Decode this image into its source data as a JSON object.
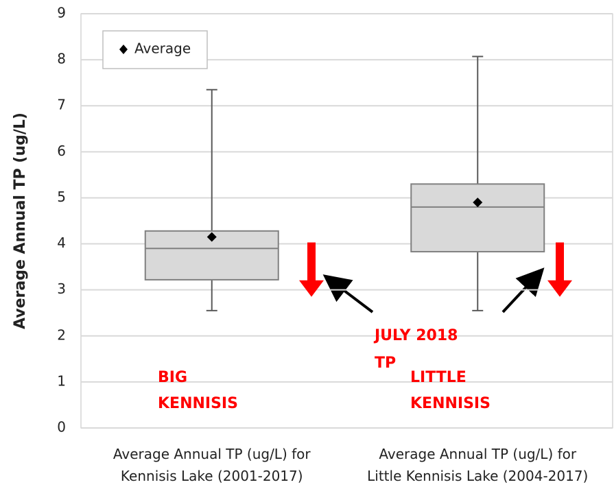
{
  "chart_data": {
    "type": "box",
    "y_label": "Average Annual TP (ug/L)",
    "categories": [
      [
        "Average Annual TP (ug/L) for",
        "Kennisis Lake (2001-2017)"
      ],
      [
        "Average Annual TP (ug/L) for",
        "Little Kennisis Lake (2004-2017)"
      ]
    ],
    "boxes": [
      {
        "min": 2.55,
        "q1": 3.22,
        "median": 3.9,
        "q3": 4.28,
        "max": 7.35,
        "mean": 4.15
      },
      {
        "min": 2.55,
        "q1": 3.83,
        "median": 4.8,
        "q3": 5.3,
        "max": 8.07,
        "mean": 4.9
      }
    ],
    "july_2018_tp": [
      {
        "from": 4.03,
        "to": 2.85
      },
      {
        "from": 4.03,
        "to": 2.85
      }
    ],
    "box_color": "#d9d9d9",
    "arrow_color": "#ff0000",
    "legend": {
      "label": "Average",
      "corner": "upper left"
    },
    "annotations": [
      {
        "lines": [
          "BIG",
          "KENNISIS"
        ]
      },
      {
        "lines": [
          "JULY 2018",
          "TP"
        ]
      },
      {
        "lines": [
          "LITTLE",
          "KENNISIS"
        ]
      }
    ],
    "ylim": [
      0,
      9
    ],
    "yticks": [
      0,
      1,
      2,
      3,
      4,
      5,
      6,
      7,
      8,
      9
    ],
    "grid": true
  }
}
